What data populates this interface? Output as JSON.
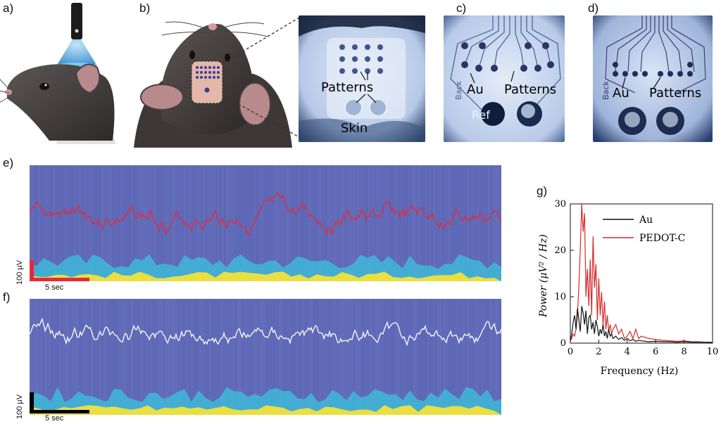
{
  "panels": {
    "a": "a)",
    "b": "b)",
    "c": "c)",
    "d": "d)",
    "e": "e)",
    "f": "f)",
    "g": "g)"
  },
  "photo_b": {
    "patterns": "Patterns",
    "skin": "Skin"
  },
  "photo_c": {
    "au": "Au",
    "patterns": "Patterns",
    "ref": "Ref",
    "back": "Back"
  },
  "photo_d": {
    "au": "Au",
    "patterns": "Patterns",
    "back": "Back"
  },
  "spectrogram_e": {
    "scale_voltage": "100 µV",
    "scale_time": "5 sec",
    "trace_color": "#e8283a",
    "scalebar_color": "#e8283a"
  },
  "spectrogram_f": {
    "scale_voltage": "100 µV",
    "scale_time": "5 sec",
    "trace_color": "#ffffff",
    "scalebar_color": "#000000"
  },
  "colors": {
    "spectro_bg": "#5b65b4",
    "spectro_cyan": "#3fb8d8",
    "spectro_yellow": "#f2e23a"
  },
  "chart_data": {
    "type": "line",
    "xlabel": "Frequency (Hz)",
    "ylabel": "Power (μV² / Hz)",
    "xlim": [
      0,
      10
    ],
    "ylim": [
      0,
      30
    ],
    "xticks": [
      "0",
      "2",
      "4",
      "6",
      "8",
      "10"
    ],
    "yticks": [
      "0",
      "10",
      "20",
      "30"
    ],
    "legend_position": "top-right",
    "series": [
      {
        "name": "Au",
        "color": "#111111",
        "x": [
          0,
          0.1,
          0.2,
          0.3,
          0.4,
          0.5,
          0.6,
          0.7,
          0.8,
          0.9,
          1.0,
          1.1,
          1.2,
          1.3,
          1.4,
          1.5,
          1.6,
          1.7,
          1.8,
          1.9,
          2.0,
          2.1,
          2.2,
          2.3,
          2.4,
          2.5,
          2.6,
          2.7,
          2.8,
          2.9,
          3.0,
          3.2,
          3.4,
          3.6,
          3.8,
          4.0,
          4.2,
          4.4,
          4.6,
          4.8,
          5.0,
          5.5,
          6.0,
          6.5,
          7.0,
          7.5,
          8.0,
          8.5,
          9.0,
          9.5,
          10
        ],
        "y": [
          0.5,
          2.0,
          4.5,
          6.0,
          3.0,
          7.5,
          5.0,
          2.5,
          8.0,
          6.5,
          4.0,
          7.0,
          2.0,
          5.5,
          6.0,
          3.0,
          4.5,
          2.0,
          5.0,
          3.5,
          1.5,
          3.0,
          2.0,
          4.0,
          1.5,
          2.5,
          1.0,
          3.0,
          1.5,
          2.0,
          1.0,
          1.5,
          0.8,
          1.2,
          0.6,
          1.0,
          0.5,
          0.8,
          0.4,
          0.6,
          0.5,
          0.3,
          0.4,
          0.3,
          0.3,
          0.2,
          0.3,
          0.2,
          0.2,
          0.2,
          0.1
        ]
      },
      {
        "name": "PEDOT-C",
        "color": "#d42a2a",
        "x": [
          0,
          0.1,
          0.2,
          0.3,
          0.4,
          0.5,
          0.6,
          0.7,
          0.8,
          0.9,
          1.0,
          1.1,
          1.2,
          1.3,
          1.4,
          1.5,
          1.6,
          1.7,
          1.8,
          1.9,
          2.0,
          2.1,
          2.2,
          2.3,
          2.4,
          2.5,
          2.6,
          2.7,
          2.8,
          2.9,
          3.0,
          3.2,
          3.4,
          3.6,
          3.8,
          4.0,
          4.2,
          4.4,
          4.6,
          4.8,
          5.0,
          5.5,
          6.0,
          6.5,
          7.0,
          7.5,
          8.0,
          8.5,
          9.0,
          9.5,
          10
        ],
        "y": [
          0.5,
          1.0,
          2.0,
          1.5,
          3.0,
          6.0,
          12.0,
          20.0,
          30.0,
          24.0,
          28.0,
          10.0,
          16.0,
          8.0,
          18.0,
          6.0,
          23.0,
          12.0,
          17.0,
          5.0,
          14.0,
          6.0,
          11.0,
          4.0,
          9.0,
          3.0,
          6.0,
          2.5,
          4.0,
          2.0,
          3.0,
          4.0,
          2.0,
          3.0,
          1.0,
          1.5,
          2.5,
          1.0,
          3.0,
          1.0,
          1.5,
          1.0,
          0.8,
          0.6,
          0.5,
          0.4,
          0.5,
          0.3,
          0.3,
          0.2,
          0.2
        ]
      }
    ]
  }
}
